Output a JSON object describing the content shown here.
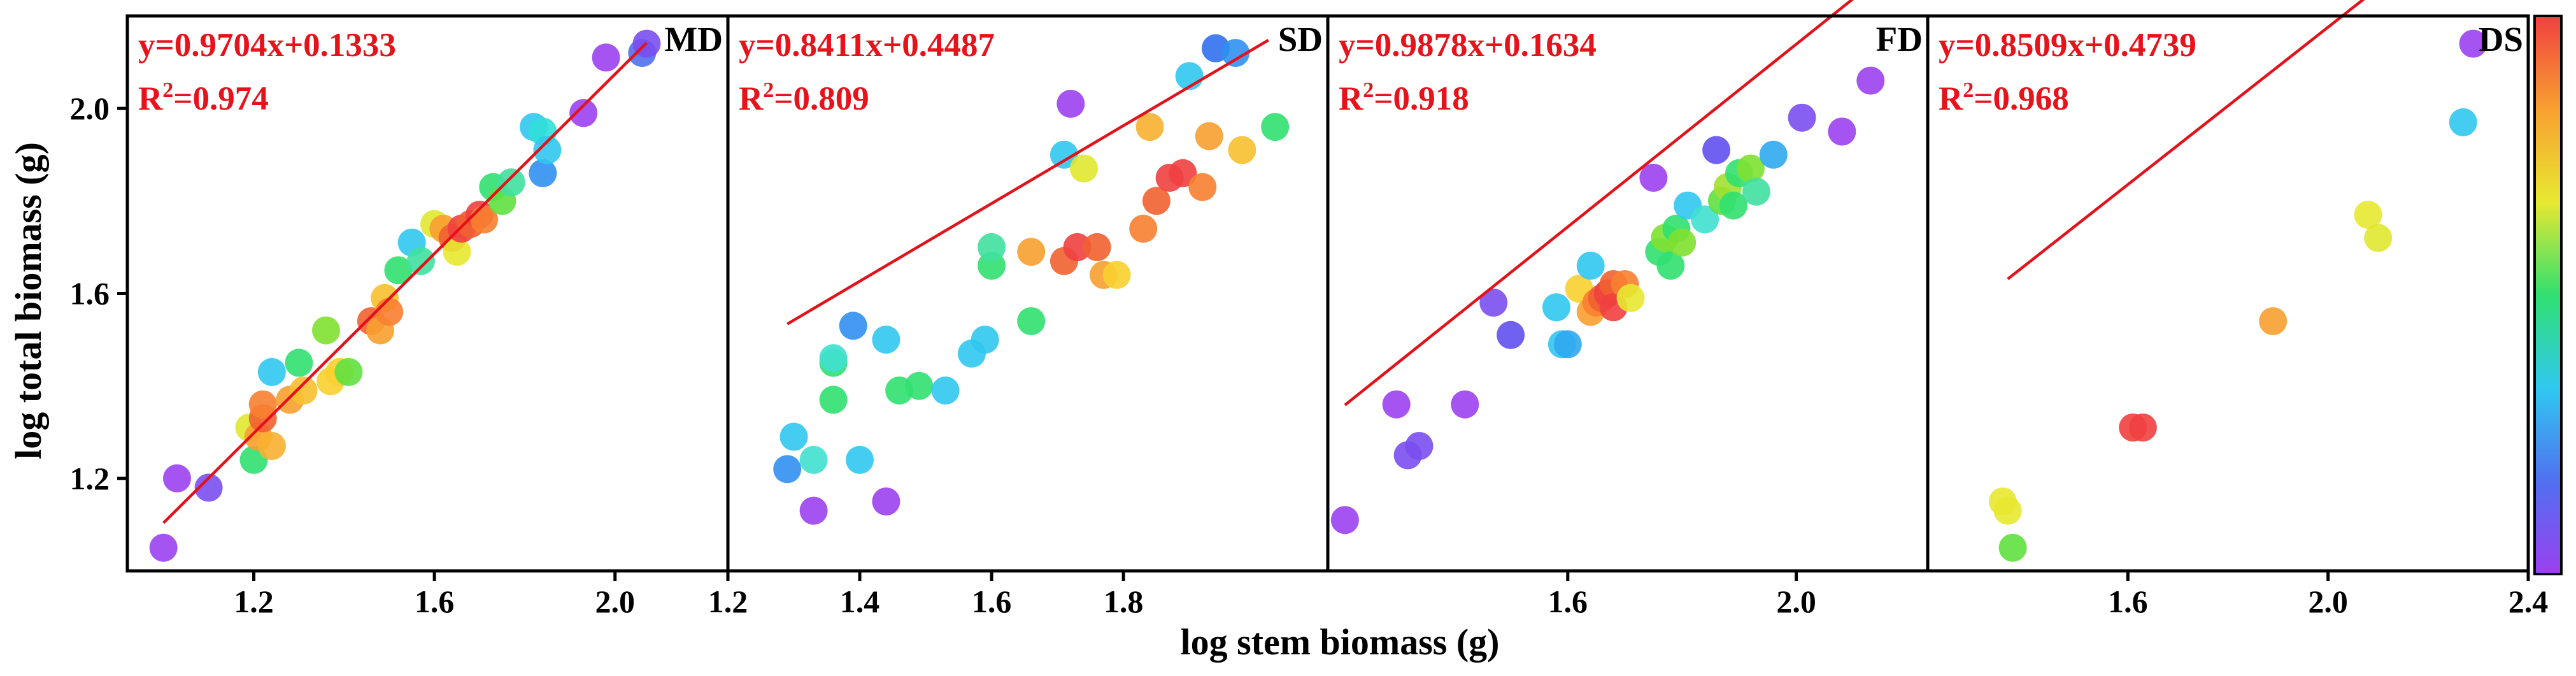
{
  "chart_data": {
    "type": "scatter",
    "figure_title": "",
    "xlabel": "log stem biomass (g)",
    "ylabel": "log total biomass (g)",
    "ylim": [
      1.0,
      2.2
    ],
    "y_ticks": [
      1.2,
      1.6,
      2.0
    ],
    "y_tick_labels": [
      "1.2",
      "1.6",
      "2.0"
    ],
    "colorbar": {
      "colors": [
        "#9b40f0",
        "#5070f0",
        "#30c8f0",
        "#30e070",
        "#e8e830",
        "#f8a030",
        "#f04040"
      ],
      "labels": []
    },
    "panels": [
      {
        "tag": "MD",
        "xlim": [
          0.92,
          2.25
        ],
        "x_ticks": [
          1.2,
          1.6,
          2.0
        ],
        "x_tick_labels": [
          "1.2",
          "1.6",
          "2.0"
        ],
        "equation": "y=0.9704x+0.1333",
        "r2_prefix": "R",
        "r2_sup": "2",
        "r2_value": "=0.974",
        "fit": {
          "slope": 0.9704,
          "intercept": 0.1333,
          "x_range": [
            1.0,
            2.07
          ]
        },
        "points": [
          {
            "x": 1.0,
            "y": 1.05,
            "color": "#9b40f0"
          },
          {
            "x": 1.03,
            "y": 1.2,
            "color": "#9b40f0"
          },
          {
            "x": 1.1,
            "y": 1.18,
            "color": "#7a4ef0"
          },
          {
            "x": 1.19,
            "y": 1.31,
            "color": "#e0e830"
          },
          {
            "x": 1.2,
            "y": 1.24,
            "color": "#30e070"
          },
          {
            "x": 1.21,
            "y": 1.29,
            "color": "#f8a030"
          },
          {
            "x": 1.22,
            "y": 1.33,
            "color": "#f06030"
          },
          {
            "x": 1.22,
            "y": 1.36,
            "color": "#f88030"
          },
          {
            "x": 1.24,
            "y": 1.27,
            "color": "#f8b030"
          },
          {
            "x": 1.24,
            "y": 1.43,
            "color": "#30c8f0"
          },
          {
            "x": 1.28,
            "y": 1.37,
            "color": "#f8a030"
          },
          {
            "x": 1.3,
            "y": 1.45,
            "color": "#30e070"
          },
          {
            "x": 1.31,
            "y": 1.39,
            "color": "#f8c030"
          },
          {
            "x": 1.36,
            "y": 1.52,
            "color": "#80e030"
          },
          {
            "x": 1.37,
            "y": 1.41,
            "color": "#f8d030"
          },
          {
            "x": 1.39,
            "y": 1.43,
            "color": "#f8d030"
          },
          {
            "x": 1.41,
            "y": 1.43,
            "color": "#60e040"
          },
          {
            "x": 1.46,
            "y": 1.54,
            "color": "#f06030"
          },
          {
            "x": 1.48,
            "y": 1.52,
            "color": "#f8a030"
          },
          {
            "x": 1.49,
            "y": 1.59,
            "color": "#f8c030"
          },
          {
            "x": 1.5,
            "y": 1.56,
            "color": "#f88030"
          },
          {
            "x": 1.52,
            "y": 1.65,
            "color": "#30e070"
          },
          {
            "x": 1.55,
            "y": 1.71,
            "color": "#30c8f0"
          },
          {
            "x": 1.57,
            "y": 1.67,
            "color": "#40e0a0"
          },
          {
            "x": 1.6,
            "y": 1.75,
            "color": "#e0e830"
          },
          {
            "x": 1.62,
            "y": 1.74,
            "color": "#f8a030"
          },
          {
            "x": 1.64,
            "y": 1.72,
            "color": "#f06030"
          },
          {
            "x": 1.65,
            "y": 1.69,
            "color": "#e8e830"
          },
          {
            "x": 1.66,
            "y": 1.74,
            "color": "#f04040"
          },
          {
            "x": 1.68,
            "y": 1.75,
            "color": "#f06030"
          },
          {
            "x": 1.7,
            "y": 1.77,
            "color": "#f04040"
          },
          {
            "x": 1.71,
            "y": 1.76,
            "color": "#f88030"
          },
          {
            "x": 1.73,
            "y": 1.83,
            "color": "#30e070"
          },
          {
            "x": 1.75,
            "y": 1.8,
            "color": "#60e040"
          },
          {
            "x": 1.77,
            "y": 1.84,
            "color": "#40e0a0"
          },
          {
            "x": 1.82,
            "y": 1.96,
            "color": "#30c8f0"
          },
          {
            "x": 1.84,
            "y": 1.95,
            "color": "#30e0d8"
          },
          {
            "x": 1.84,
            "y": 1.86,
            "color": "#3090f0"
          },
          {
            "x": 1.85,
            "y": 1.91,
            "color": "#30c8f0"
          },
          {
            "x": 1.93,
            "y": 1.99,
            "color": "#9b40f0"
          },
          {
            "x": 1.98,
            "y": 2.11,
            "color": "#9b40f0"
          },
          {
            "x": 2.06,
            "y": 2.12,
            "color": "#5070f0"
          },
          {
            "x": 2.07,
            "y": 2.14,
            "color": "#7a4ef0"
          }
        ]
      },
      {
        "tag": "SD",
        "xlim": [
          1.2,
          2.11
        ],
        "x_ticks": [
          1.2,
          1.4,
          1.6,
          1.8
        ],
        "x_tick_labels": [
          "1.2",
          "1.4",
          "1.6",
          "1.8"
        ],
        "equation": "y=0.8411x+0.4487",
        "r2_prefix": "R",
        "r2_sup": "2",
        "r2_value": "=0.809",
        "fit": {
          "slope": 0.8411,
          "intercept": 0.4487,
          "x_range": [
            1.29,
            2.02
          ]
        },
        "points": [
          {
            "x": 1.29,
            "y": 1.22,
            "color": "#3090f0"
          },
          {
            "x": 1.3,
            "y": 1.29,
            "color": "#30c8f0"
          },
          {
            "x": 1.33,
            "y": 1.13,
            "color": "#9b40f0"
          },
          {
            "x": 1.33,
            "y": 1.24,
            "color": "#40e0d0"
          },
          {
            "x": 1.36,
            "y": 1.37,
            "color": "#30e070"
          },
          {
            "x": 1.36,
            "y": 1.45,
            "color": "#30e070"
          },
          {
            "x": 1.36,
            "y": 1.46,
            "color": "#40e0d0"
          },
          {
            "x": 1.39,
            "y": 1.53,
            "color": "#3090f0"
          },
          {
            "x": 1.4,
            "y": 1.24,
            "color": "#30c8f0"
          },
          {
            "x": 1.44,
            "y": 1.15,
            "color": "#9b40f0"
          },
          {
            "x": 1.44,
            "y": 1.5,
            "color": "#30c8f0"
          },
          {
            "x": 1.46,
            "y": 1.39,
            "color": "#30e070"
          },
          {
            "x": 1.49,
            "y": 1.4,
            "color": "#30e070"
          },
          {
            "x": 1.53,
            "y": 1.39,
            "color": "#30c8f0"
          },
          {
            "x": 1.57,
            "y": 1.47,
            "color": "#30c8f0"
          },
          {
            "x": 1.59,
            "y": 1.5,
            "color": "#30c8f0"
          },
          {
            "x": 1.6,
            "y": 1.66,
            "color": "#30e070"
          },
          {
            "x": 1.6,
            "y": 1.7,
            "color": "#40e0a0"
          },
          {
            "x": 1.66,
            "y": 1.54,
            "color": "#30e070"
          },
          {
            "x": 1.66,
            "y": 1.69,
            "color": "#f8a030"
          },
          {
            "x": 1.71,
            "y": 1.67,
            "color": "#f06030"
          },
          {
            "x": 1.71,
            "y": 1.9,
            "color": "#30c8f0"
          },
          {
            "x": 1.72,
            "y": 2.01,
            "color": "#9b40f0"
          },
          {
            "x": 1.73,
            "y": 1.7,
            "color": "#f04040"
          },
          {
            "x": 1.74,
            "y": 1.87,
            "color": "#e0e830"
          },
          {
            "x": 1.76,
            "y": 1.7,
            "color": "#f06030"
          },
          {
            "x": 1.77,
            "y": 1.64,
            "color": "#f8a030"
          },
          {
            "x": 1.79,
            "y": 1.64,
            "color": "#f8d030"
          },
          {
            "x": 1.83,
            "y": 1.74,
            "color": "#f88030"
          },
          {
            "x": 1.84,
            "y": 1.96,
            "color": "#f8b030"
          },
          {
            "x": 1.85,
            "y": 1.8,
            "color": "#f06030"
          },
          {
            "x": 1.87,
            "y": 1.85,
            "color": "#f04040"
          },
          {
            "x": 1.89,
            "y": 1.86,
            "color": "#f04040"
          },
          {
            "x": 1.9,
            "y": 2.07,
            "color": "#30c8f0"
          },
          {
            "x": 1.92,
            "y": 1.83,
            "color": "#f88030"
          },
          {
            "x": 1.93,
            "y": 1.94,
            "color": "#f8a030"
          },
          {
            "x": 1.94,
            "y": 2.13,
            "color": "#3070f0"
          },
          {
            "x": 1.97,
            "y": 2.12,
            "color": "#3090f0"
          },
          {
            "x": 1.98,
            "y": 1.91,
            "color": "#f8c030"
          },
          {
            "x": 2.03,
            "y": 1.96,
            "color": "#30e070"
          }
        ]
      },
      {
        "tag": "FD",
        "xlim": [
          1.18,
          2.23
        ],
        "x_ticks": [
          1.6,
          2.0
        ],
        "x_tick_labels": [
          "1.6",
          "2.0"
        ],
        "equation": "y=0.9878x+0.1634",
        "r2_prefix": "R",
        "r2_sup": "2",
        "r2_value": "=0.918",
        "fit": {
          "slope": 0.9878,
          "intercept": 0.1634,
          "x_range": [
            1.21,
            2.13
          ]
        },
        "points": [
          {
            "x": 1.21,
            "y": 1.11,
            "color": "#9b40f0"
          },
          {
            "x": 1.3,
            "y": 1.36,
            "color": "#9b40f0"
          },
          {
            "x": 1.32,
            "y": 1.25,
            "color": "#7a4ef0"
          },
          {
            "x": 1.34,
            "y": 1.27,
            "color": "#7a4ef0"
          },
          {
            "x": 1.42,
            "y": 1.36,
            "color": "#9b40f0"
          },
          {
            "x": 1.47,
            "y": 1.58,
            "color": "#7a4ef0"
          },
          {
            "x": 1.5,
            "y": 1.51,
            "color": "#6050f0"
          },
          {
            "x": 1.58,
            "y": 1.57,
            "color": "#30c8f0"
          },
          {
            "x": 1.59,
            "y": 1.49,
            "color": "#30c8f0"
          },
          {
            "x": 1.6,
            "y": 1.49,
            "color": "#30a8f0"
          },
          {
            "x": 1.62,
            "y": 1.61,
            "color": "#f8d030"
          },
          {
            "x": 1.64,
            "y": 1.66,
            "color": "#30c8f0"
          },
          {
            "x": 1.64,
            "y": 1.56,
            "color": "#f8a030"
          },
          {
            "x": 1.65,
            "y": 1.58,
            "color": "#f88030"
          },
          {
            "x": 1.66,
            "y": 1.59,
            "color": "#f06030"
          },
          {
            "x": 1.67,
            "y": 1.6,
            "color": "#f04040"
          },
          {
            "x": 1.68,
            "y": 1.62,
            "color": "#f06030"
          },
          {
            "x": 1.68,
            "y": 1.57,
            "color": "#f04040"
          },
          {
            "x": 1.7,
            "y": 1.62,
            "color": "#f88030"
          },
          {
            "x": 1.71,
            "y": 1.59,
            "color": "#e8e830"
          },
          {
            "x": 1.75,
            "y": 1.85,
            "color": "#9b40f0"
          },
          {
            "x": 1.76,
            "y": 1.69,
            "color": "#30e070"
          },
          {
            "x": 1.77,
            "y": 1.72,
            "color": "#80e030"
          },
          {
            "x": 1.78,
            "y": 1.66,
            "color": "#30e070"
          },
          {
            "x": 1.79,
            "y": 1.74,
            "color": "#30e070"
          },
          {
            "x": 1.8,
            "y": 1.71,
            "color": "#80e030"
          },
          {
            "x": 1.81,
            "y": 1.79,
            "color": "#30c8f0"
          },
          {
            "x": 1.84,
            "y": 1.76,
            "color": "#40e0d0"
          },
          {
            "x": 1.86,
            "y": 1.91,
            "color": "#6050f0"
          },
          {
            "x": 1.87,
            "y": 1.8,
            "color": "#60e040"
          },
          {
            "x": 1.88,
            "y": 1.83,
            "color": "#a0e030"
          },
          {
            "x": 1.89,
            "y": 1.79,
            "color": "#30e070"
          },
          {
            "x": 1.9,
            "y": 1.86,
            "color": "#30e070"
          },
          {
            "x": 1.92,
            "y": 1.87,
            "color": "#80e030"
          },
          {
            "x": 1.93,
            "y": 1.82,
            "color": "#40e0a0"
          },
          {
            "x": 1.96,
            "y": 1.9,
            "color": "#30a8f0"
          },
          {
            "x": 2.01,
            "y": 1.98,
            "color": "#7a4ef0"
          },
          {
            "x": 2.08,
            "y": 1.95,
            "color": "#9b40f0"
          },
          {
            "x": 2.13,
            "y": 2.06,
            "color": "#9b40f0"
          }
        ]
      },
      {
        "tag": "DS",
        "xlim": [
          1.2,
          2.4
        ],
        "x_ticks": [
          1.6,
          2.0,
          2.4
        ],
        "x_tick_labels": [
          "1.6",
          "2.0",
          "2.4"
        ],
        "equation": "y=0.8509x+0.4739",
        "r2_prefix": "R",
        "r2_sup": "2",
        "r2_value": "=0.968",
        "fit": {
          "slope": 0.8509,
          "intercept": 0.4739,
          "x_range": [
            1.36,
            2.3
          ]
        },
        "points": [
          {
            "x": 1.35,
            "y": 1.15,
            "color": "#e8e830"
          },
          {
            "x": 1.36,
            "y": 1.13,
            "color": "#e8e830"
          },
          {
            "x": 1.37,
            "y": 1.05,
            "color": "#60e040"
          },
          {
            "x": 1.61,
            "y": 1.31,
            "color": "#f04040"
          },
          {
            "x": 1.63,
            "y": 1.31,
            "color": "#f04040"
          },
          {
            "x": 1.89,
            "y": 1.54,
            "color": "#f8a030"
          },
          {
            "x": 2.08,
            "y": 1.77,
            "color": "#e8e830"
          },
          {
            "x": 2.1,
            "y": 1.72,
            "color": "#e0e830"
          },
          {
            "x": 2.27,
            "y": 1.97,
            "color": "#30c8f0"
          },
          {
            "x": 2.29,
            "y": 2.14,
            "color": "#9b40f0"
          }
        ]
      }
    ]
  }
}
